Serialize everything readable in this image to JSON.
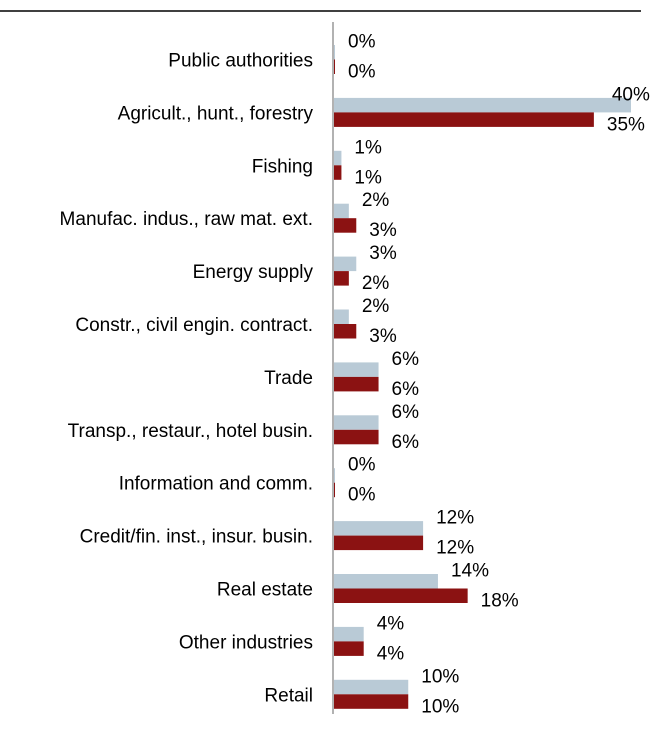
{
  "chart_data": {
    "type": "bar",
    "orientation": "horizontal",
    "title": "",
    "xlabel": "",
    "ylabel": "",
    "grid": false,
    "legend": "none",
    "xlim": [
      0,
      40
    ],
    "categories": [
      "Public authorities",
      "Agricult., hunt., forestry",
      "Fishing",
      "Manufac. indus., raw mat. ext.",
      "Energy supply",
      "Constr., civil engin. contract.",
      "Trade",
      "Transp., restaur., hotel busin.",
      "Information and comm.",
      "Credit/fin. inst., insur. busin.",
      "Real estate",
      "Other industries",
      "Retail"
    ],
    "series": [
      {
        "color": "#b9cad6",
        "values": [
          0,
          40,
          1,
          2,
          3,
          2,
          6,
          6,
          0,
          12,
          14,
          4,
          10
        ],
        "labels": [
          "0%",
          "40%",
          "1%",
          "2%",
          "3%",
          "2%",
          "6%",
          "6%",
          "0%",
          "12%",
          "14%",
          "4%",
          "10%"
        ]
      },
      {
        "color": "#8b1212",
        "values": [
          0,
          35,
          1,
          3,
          2,
          3,
          6,
          6,
          0,
          12,
          18,
          4,
          10
        ],
        "labels": [
          "0%",
          "35%",
          "1%",
          "3%",
          "2%",
          "3%",
          "6%",
          "6%",
          "0%",
          "12%",
          "18%",
          "4%",
          "10%"
        ]
      }
    ]
  }
}
